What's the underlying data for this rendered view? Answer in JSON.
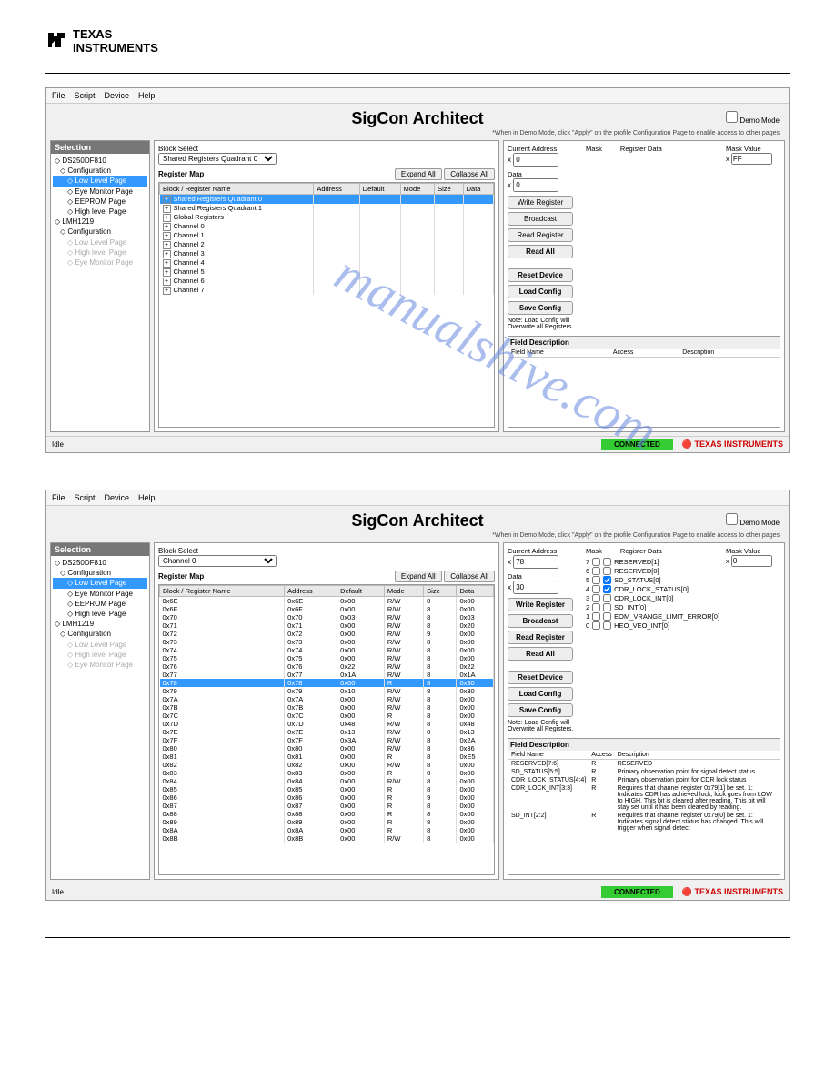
{
  "logo_text1": "TEXAS",
  "logo_text2": "INSTRUMENTS",
  "watermark": "manualshive.com",
  "menus": [
    "File",
    "Script",
    "Device",
    "Help"
  ],
  "app_title": "SigCon Architect",
  "demo_label": "Demo Mode",
  "hint": "*When in Demo Mode, click \"Apply\" on the profile Configuration Page to enable access to other pages",
  "sidebar_header": "Selection",
  "tree": [
    {
      "t": "DS250DF810",
      "l": 0
    },
    {
      "t": "Configuration",
      "l": 1
    },
    {
      "t": "Low Level Page",
      "l": 2,
      "sel": true
    },
    {
      "t": "Eye Monitor Page",
      "l": 2
    },
    {
      "t": "EEPROM Page",
      "l": 2
    },
    {
      "t": "High level Page",
      "l": 2
    },
    {
      "t": "LMH1219",
      "l": 0
    },
    {
      "t": "Configuration",
      "l": 1
    },
    {
      "t": "Low Level Page",
      "l": 2,
      "dim": true
    },
    {
      "t": "High level Page",
      "l": 2,
      "dim": true
    },
    {
      "t": "Eye Monitor Page",
      "l": 2,
      "dim": true
    }
  ],
  "block_select_label": "Block Select",
  "register_map_label": "Register Map",
  "expand_all": "Expand All",
  "collapse_all": "Collapse All",
  "reg_columns": [
    "Block / Register Name",
    "Address",
    "Default",
    "Mode",
    "Size",
    "Data"
  ],
  "screenshot1": {
    "block_select_value": "Shared Registers Quadrant 0",
    "rows": [
      {
        "n": "Shared Registers Quadrant 0",
        "sel": true
      },
      {
        "n": "Shared Registers Quadrant 1"
      },
      {
        "n": "Global Registers"
      },
      {
        "n": "Channel 0"
      },
      {
        "n": "Channel 1"
      },
      {
        "n": "Channel 2"
      },
      {
        "n": "Channel 3"
      },
      {
        "n": "Channel 4"
      },
      {
        "n": "Channel 5"
      },
      {
        "n": "Channel 6"
      },
      {
        "n": "Channel 7"
      }
    ],
    "current_address": "0",
    "data_val": "0",
    "mask_value": "FF"
  },
  "screenshot2": {
    "block_select_value": "Channel 0",
    "rows": [
      {
        "n": "0x6E",
        "a": "0x6E",
        "d": "0x00",
        "m": "R/W",
        "s": "8",
        "v": "0x00"
      },
      {
        "n": "0x6F",
        "a": "0x6F",
        "d": "0x00",
        "m": "R/W",
        "s": "8",
        "v": "0x00"
      },
      {
        "n": "0x70",
        "a": "0x70",
        "d": "0x03",
        "m": "R/W",
        "s": "8",
        "v": "0x03"
      },
      {
        "n": "0x71",
        "a": "0x71",
        "d": "0x00",
        "m": "R/W",
        "s": "8",
        "v": "0x20"
      },
      {
        "n": "0x72",
        "a": "0x72",
        "d": "0x00",
        "m": "R/W",
        "s": "9",
        "v": "0x00"
      },
      {
        "n": "0x73",
        "a": "0x73",
        "d": "0x00",
        "m": "R/W",
        "s": "8",
        "v": "0x00"
      },
      {
        "n": "0x74",
        "a": "0x74",
        "d": "0x00",
        "m": "R/W",
        "s": "8",
        "v": "0x00"
      },
      {
        "n": "0x75",
        "a": "0x75",
        "d": "0x00",
        "m": "R/W",
        "s": "8",
        "v": "0x00"
      },
      {
        "n": "0x76",
        "a": "0x76",
        "d": "0x22",
        "m": "R/W",
        "s": "8",
        "v": "0x22"
      },
      {
        "n": "0x77",
        "a": "0x77",
        "d": "0x1A",
        "m": "R/W",
        "s": "8",
        "v": "0x1A"
      },
      {
        "n": "0x78",
        "a": "0x78",
        "d": "0x00",
        "m": "R",
        "s": "8",
        "v": "0x30",
        "sel": true
      },
      {
        "n": "0x79",
        "a": "0x79",
        "d": "0x10",
        "m": "R/W",
        "s": "8",
        "v": "0x30"
      },
      {
        "n": "0x7A",
        "a": "0x7A",
        "d": "0x00",
        "m": "R/W",
        "s": "8",
        "v": "0x00"
      },
      {
        "n": "0x7B",
        "a": "0x7B",
        "d": "0x00",
        "m": "R/W",
        "s": "8",
        "v": "0x00"
      },
      {
        "n": "0x7C",
        "a": "0x7C",
        "d": "0x00",
        "m": "R",
        "s": "8",
        "v": "0x00"
      },
      {
        "n": "0x7D",
        "a": "0x7D",
        "d": "0x48",
        "m": "R/W",
        "s": "8",
        "v": "0x48"
      },
      {
        "n": "0x7E",
        "a": "0x7E",
        "d": "0x13",
        "m": "R/W",
        "s": "8",
        "v": "0x13"
      },
      {
        "n": "0x7F",
        "a": "0x7F",
        "d": "0x3A",
        "m": "R/W",
        "s": "8",
        "v": "0x2A"
      },
      {
        "n": "0x80",
        "a": "0x80",
        "d": "0x00",
        "m": "R/W",
        "s": "8",
        "v": "0x36"
      },
      {
        "n": "0x81",
        "a": "0x81",
        "d": "0x00",
        "m": "R",
        "s": "8",
        "v": "0xE5"
      },
      {
        "n": "0x82",
        "a": "0x82",
        "d": "0x00",
        "m": "R/W",
        "s": "8",
        "v": "0x00"
      },
      {
        "n": "0x83",
        "a": "0x83",
        "d": "0x00",
        "m": "R",
        "s": "8",
        "v": "0x00"
      },
      {
        "n": "0x84",
        "a": "0x84",
        "d": "0x00",
        "m": "R/W",
        "s": "8",
        "v": "0x00"
      },
      {
        "n": "0x85",
        "a": "0x85",
        "d": "0x00",
        "m": "R",
        "s": "8",
        "v": "0x00"
      },
      {
        "n": "0x86",
        "a": "0x86",
        "d": "0x00",
        "m": "R",
        "s": "9",
        "v": "0x00"
      },
      {
        "n": "0x87",
        "a": "0x87",
        "d": "0x00",
        "m": "R",
        "s": "8",
        "v": "0x00"
      },
      {
        "n": "0x88",
        "a": "0x88",
        "d": "0x00",
        "m": "R",
        "s": "8",
        "v": "0x00"
      },
      {
        "n": "0x89",
        "a": "0x89",
        "d": "0x00",
        "m": "R",
        "s": "8",
        "v": "0x00"
      },
      {
        "n": "0x8A",
        "a": "0x8A",
        "d": "0x00",
        "m": "R",
        "s": "8",
        "v": "0x00"
      },
      {
        "n": "0x8B",
        "a": "0x8B",
        "d": "0x00",
        "m": "R/W",
        "s": "8",
        "v": "0x00"
      }
    ],
    "current_address": "78",
    "data_val": "30",
    "mask_value": "0",
    "mask_bits": [
      {
        "i": "7",
        "l": "RESERVED[1]"
      },
      {
        "i": "6",
        "l": "RESERVED[0]"
      },
      {
        "i": "5",
        "l": "SD_STATUS[0]",
        "c": true
      },
      {
        "i": "4",
        "l": "CDR_LOCK_STATUS[0]",
        "c": true
      },
      {
        "i": "3",
        "l": "CDR_LOCK_INT[0]"
      },
      {
        "i": "2",
        "l": "SD_INT[0]"
      },
      {
        "i": "1",
        "l": "EOM_VRANGE_LIMIT_ERROR[0]"
      },
      {
        "i": "0",
        "l": "HEO_VEO_INT[0]"
      }
    ],
    "field_desc": [
      {
        "f": "RESERVED[7:6]",
        "a": "R",
        "d": "RESERVED"
      },
      {
        "f": "SD_STATUS[5:5]",
        "a": "R",
        "d": "Primary observation point for signal detect status"
      },
      {
        "f": "CDR_LOCK_STATUS[4:4]",
        "a": "R",
        "d": "Primary observation point for CDR lock status"
      },
      {
        "f": "CDR_LOCK_INT[3:3]",
        "a": "R",
        "d": "Requires that channel register 0x79[1] be set. 1: Indicates CDR has achieved lock, lock goes from LOW to HIGH. This bit is cleared after reading. This bit will stay set until it has been cleared by reading."
      },
      {
        "f": "SD_INT[2:2]",
        "a": "R",
        "d": "Requires that channel register 0x79[0] be set. 1: Indicates signal detect status has changed. This will trigger when signal detect"
      }
    ]
  },
  "labels": {
    "current_address": "Current Address",
    "data": "Data",
    "mask": "Mask",
    "register_data": "Register Data",
    "mask_value": "Mask Value",
    "field_description": "Field Description",
    "field_name": "Field Name",
    "access": "Access",
    "description": "Description",
    "write_register": "Write Register",
    "broadcast": "Broadcast",
    "read_register": "Read Register",
    "read_all": "Read All",
    "reset_device": "Reset Device",
    "load_config": "Load Config",
    "save_config": "Save Config",
    "note": "Note: Load Config will Overwrite all Registers.",
    "idle": "Idle",
    "connected": "CONNECTED",
    "ti_brand": "TEXAS INSTRUMENTS"
  }
}
